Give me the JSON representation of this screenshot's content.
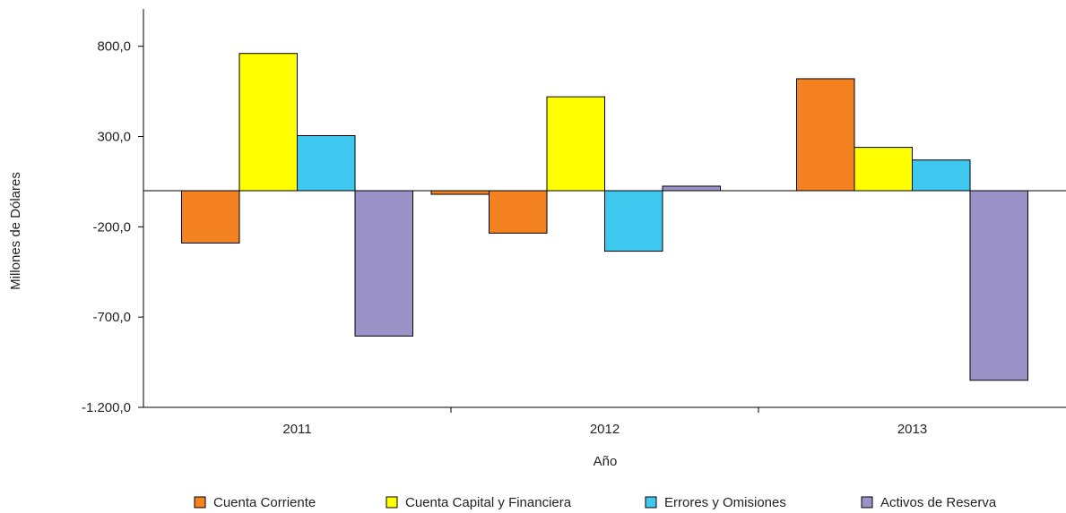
{
  "chart_data": {
    "type": "bar",
    "title": "",
    "xlabel": "Año",
    "ylabel": "Millones de Dólares",
    "categories": [
      "2011",
      "2012",
      "2013"
    ],
    "y_ticks": [
      "800,0",
      "300,0",
      "-200,0",
      "-700,0",
      "-1.200,0"
    ],
    "ylim": [
      -1200,
      1000
    ],
    "grid": false,
    "legend_position": "bottom",
    "series": [
      {
        "name": "Cuenta Corriente",
        "color": "#f58220",
        "values": [
          -290,
          -235,
          620
        ]
      },
      {
        "name": "Cuenta Capital y Financiera",
        "color": "#ffff00",
        "values": [
          760,
          520,
          240
        ]
      },
      {
        "name": "Errores y Omisiones",
        "color": "#3ec8f0",
        "values": [
          305,
          -335,
          170
        ]
      },
      {
        "name": "Activos de Reserva",
        "color": "#9b93c8",
        "values": [
          -805,
          25,
          -1050
        ]
      }
    ],
    "extra_bars": [
      {
        "category": "2012",
        "value": -20,
        "color": "#f58220"
      }
    ]
  }
}
